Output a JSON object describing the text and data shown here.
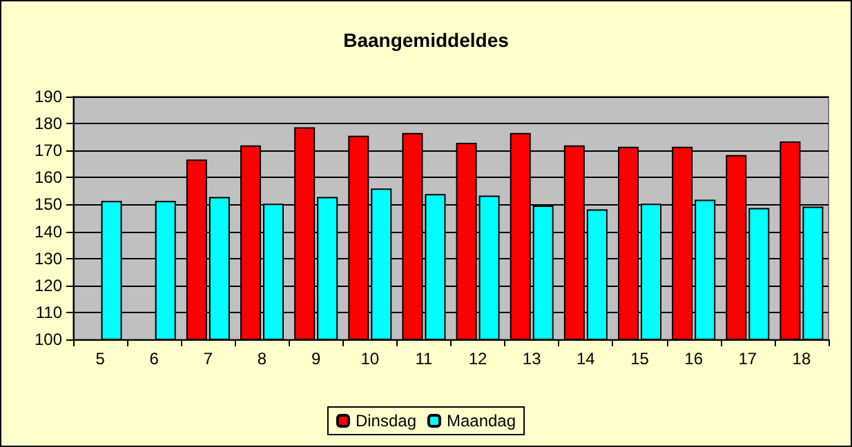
{
  "chart_data": {
    "type": "bar",
    "title": "Baangemiddeldes",
    "categories": [
      "5",
      "6",
      "7",
      "8",
      "9",
      "10",
      "11",
      "12",
      "13",
      "14",
      "15",
      "16",
      "17",
      "18"
    ],
    "series": [
      {
        "name": "Dinsdag",
        "color": "#ff0000",
        "values": [
          null,
          null,
          166.7,
          171.9,
          178.6,
          175.5,
          176.5,
          172.9,
          176.5,
          171.9,
          171.4,
          171.4,
          168.3,
          173.4
        ]
      },
      {
        "name": "Maandag",
        "color": "#00ffff",
        "values": [
          151.3,
          151.3,
          152.8,
          150.3,
          152.8,
          155.9,
          153.9,
          153.3,
          149.6,
          148.2,
          150.3,
          151.8,
          148.7,
          149.2
        ]
      }
    ],
    "ylim": [
      100,
      190
    ],
    "yticks": [
      100,
      110,
      120,
      130,
      140,
      150,
      160,
      170,
      180,
      190
    ],
    "grid": "y",
    "legend": "bottom"
  }
}
